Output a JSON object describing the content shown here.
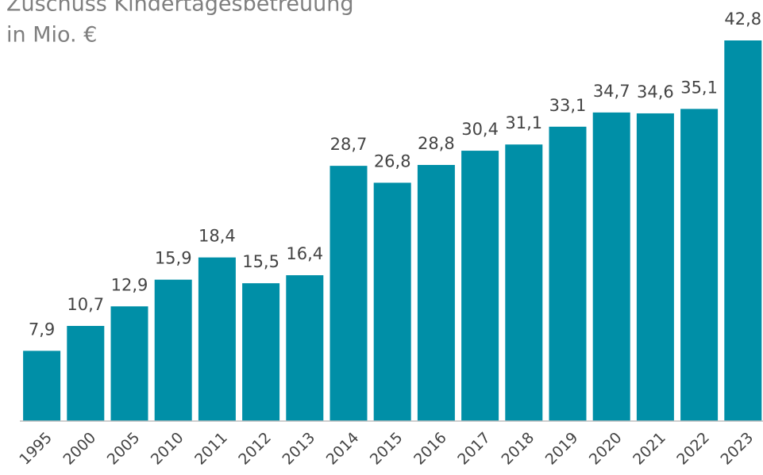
{
  "chart_data": {
    "type": "bar",
    "title": "Zuschuss Kindertagesbetreuung",
    "subtitle": "in Mio. €",
    "categories": [
      "1995",
      "2000",
      "2005",
      "2010",
      "2011",
      "2012",
      "2013",
      "2014",
      "2015",
      "2016",
      "2017",
      "2018",
      "2019",
      "2020",
      "2021",
      "2022",
      "2023"
    ],
    "values": [
      7.9,
      10.7,
      12.9,
      15.9,
      18.4,
      15.5,
      16.4,
      28.7,
      26.8,
      28.8,
      30.4,
      31.1,
      33.1,
      34.7,
      34.6,
      35.1,
      42.8
    ],
    "value_labels": [
      "7,9",
      "10,7",
      "12,9",
      "15,9",
      "18,4",
      "15,5",
      "16,4",
      "28,7",
      "26,8",
      "28,8",
      "30,4",
      "31,1",
      "33,1",
      "34,7",
      "34,6",
      "35,1",
      "42,8"
    ],
    "color": "#008fa7",
    "ylim": [
      0,
      42.8
    ]
  }
}
